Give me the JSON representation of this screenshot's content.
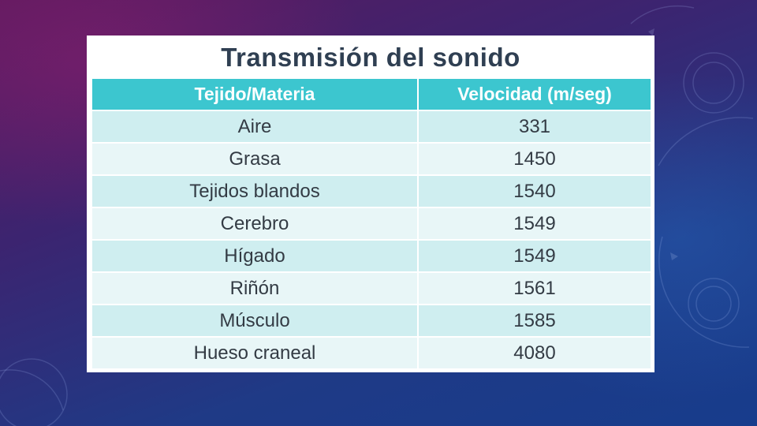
{
  "slide": {
    "title": "Transmisión del sonido",
    "table": {
      "headers": [
        "Tejido/Materia",
        "Velocidad (m/seg)"
      ],
      "rows": [
        {
          "tissue": "Aire",
          "velocity": "331"
        },
        {
          "tissue": "Grasa",
          "velocity": "1450"
        },
        {
          "tissue": "Tejidos blandos",
          "velocity": "1540"
        },
        {
          "tissue": "Cerebro",
          "velocity": "1549"
        },
        {
          "tissue": "Hígado",
          "velocity": "1549"
        },
        {
          "tissue": "Riñón",
          "velocity": "1561"
        },
        {
          "tissue": "Músculo",
          "velocity": "1585"
        },
        {
          "tissue": "Hueso craneal",
          "velocity": "4080"
        }
      ]
    }
  },
  "colors": {
    "header_bg": "#3cc6cf",
    "row_odd": "#cfeef0",
    "row_even": "#e8f6f7",
    "title_text": "#2f3f52"
  }
}
